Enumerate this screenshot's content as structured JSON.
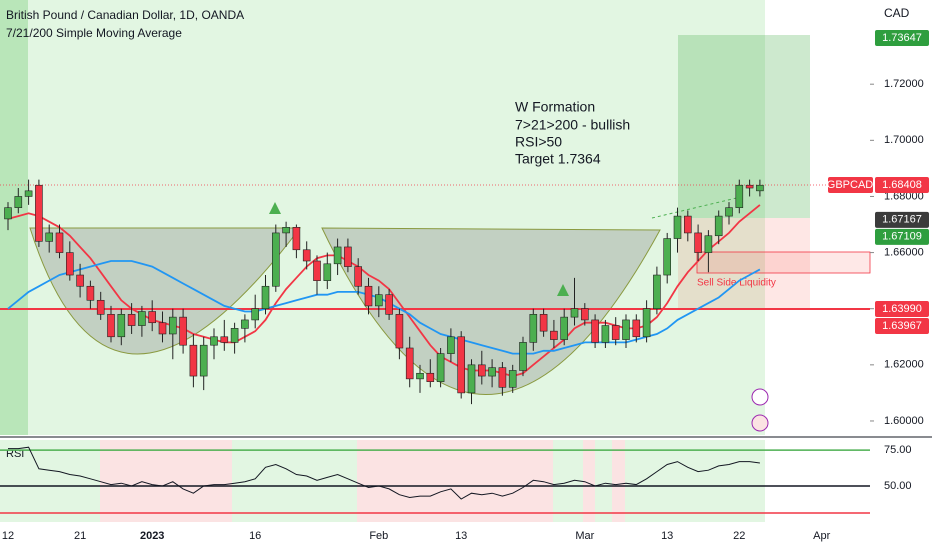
{
  "chart_data": {
    "type": "candlestick",
    "title": "British Pound / Canadian Dollar, 1D, OANDA",
    "subtitle": "7/21/200 Simple Moving Average",
    "currency": "CAD",
    "symbol": "GBPCAD",
    "categories": [
      "12",
      null,
      null,
      null,
      null,
      null,
      null,
      "21",
      null,
      null,
      null,
      null,
      null,
      null,
      "2023",
      null,
      null,
      null,
      null,
      null,
      null,
      null,
      null,
      null,
      "16",
      null,
      null,
      null,
      null,
      null,
      null,
      null,
      null,
      null,
      null,
      null,
      "Feb",
      null,
      null,
      null,
      null,
      null,
      null,
      null,
      "13",
      null,
      null,
      null,
      null,
      null,
      null,
      null,
      null,
      null,
      null,
      null,
      "Mar",
      null,
      null,
      null,
      null,
      null,
      null,
      null,
      "13",
      null,
      null,
      null,
      null,
      null,
      null,
      "22",
      null,
      null,
      null,
      null,
      null,
      null,
      null,
      "Apr"
    ],
    "candles": [
      [
        1.672,
        1.678,
        1.668,
        1.676
      ],
      [
        1.676,
        1.683,
        1.674,
        1.68
      ],
      [
        1.68,
        1.686,
        1.677,
        1.682
      ],
      [
        1.684,
        1.686,
        1.662,
        1.664
      ],
      [
        1.664,
        1.67,
        1.66,
        1.667
      ],
      [
        1.667,
        1.67,
        1.658,
        1.66
      ],
      [
        1.66,
        1.664,
        1.65,
        1.652
      ],
      [
        1.652,
        1.656,
        1.644,
        1.648
      ],
      [
        1.648,
        1.65,
        1.64,
        1.643
      ],
      [
        1.643,
        1.646,
        1.636,
        1.638
      ],
      [
        1.638,
        1.641,
        1.628,
        1.63
      ],
      [
        1.63,
        1.64,
        1.627,
        1.638
      ],
      [
        1.638,
        1.642,
        1.631,
        1.634
      ],
      [
        1.634,
        1.641,
        1.63,
        1.639
      ],
      [
        1.639,
        1.643,
        1.632,
        1.635
      ],
      [
        1.635,
        1.639,
        1.628,
        1.631
      ],
      [
        1.631,
        1.64,
        1.622,
        1.637
      ],
      [
        1.637,
        1.64,
        1.624,
        1.627
      ],
      [
        1.627,
        1.631,
        1.612,
        1.616
      ],
      [
        1.616,
        1.63,
        1.611,
        1.627
      ],
      [
        1.627,
        1.633,
        1.622,
        1.63
      ],
      [
        1.63,
        1.636,
        1.625,
        1.628
      ],
      [
        1.628,
        1.635,
        1.624,
        1.633
      ],
      [
        1.633,
        1.638,
        1.628,
        1.636
      ],
      [
        1.636,
        1.645,
        1.633,
        1.64
      ],
      [
        1.64,
        1.652,
        1.638,
        1.648
      ],
      [
        1.648,
        1.67,
        1.646,
        1.667
      ],
      [
        1.667,
        1.671,
        1.662,
        1.669
      ],
      [
        1.669,
        1.67,
        1.658,
        1.661
      ],
      [
        1.661,
        1.664,
        1.654,
        1.657
      ],
      [
        1.657,
        1.659,
        1.645,
        1.65
      ],
      [
        1.65,
        1.66,
        1.647,
        1.656
      ],
      [
        1.656,
        1.665,
        1.652,
        1.662
      ],
      [
        1.662,
        1.665,
        1.653,
        1.655
      ],
      [
        1.655,
        1.658,
        1.645,
        1.648
      ],
      [
        1.648,
        1.651,
        1.638,
        1.641
      ],
      [
        1.641,
        1.648,
        1.637,
        1.645
      ],
      [
        1.645,
        1.647,
        1.636,
        1.638
      ],
      [
        1.638,
        1.64,
        1.622,
        1.626
      ],
      [
        1.626,
        1.63,
        1.612,
        1.615
      ],
      [
        1.615,
        1.62,
        1.61,
        1.617
      ],
      [
        1.617,
        1.622,
        1.612,
        1.614
      ],
      [
        1.614,
        1.626,
        1.612,
        1.624
      ],
      [
        1.624,
        1.633,
        1.621,
        1.63
      ],
      [
        1.63,
        1.632,
        1.608,
        1.61
      ],
      [
        1.61,
        1.622,
        1.606,
        1.62
      ],
      [
        1.62,
        1.625,
        1.613,
        1.616
      ],
      [
        1.616,
        1.622,
        1.612,
        1.619
      ],
      [
        1.619,
        1.621,
        1.609,
        1.612
      ],
      [
        1.612,
        1.62,
        1.61,
        1.618
      ],
      [
        1.618,
        1.63,
        1.616,
        1.628
      ],
      [
        1.628,
        1.64,
        1.625,
        1.638
      ],
      [
        1.638,
        1.64,
        1.63,
        1.632
      ],
      [
        1.632,
        1.636,
        1.626,
        1.629
      ],
      [
        1.629,
        1.64,
        1.627,
        1.637
      ],
      [
        1.637,
        1.651,
        1.634,
        1.64
      ],
      [
        1.64,
        1.642,
        1.634,
        1.636
      ],
      [
        1.636,
        1.638,
        1.626,
        1.628
      ],
      [
        1.628,
        1.636,
        1.626,
        1.634
      ],
      [
        1.634,
        1.637,
        1.627,
        1.629
      ],
      [
        1.629,
        1.638,
        1.626,
        1.636
      ],
      [
        1.636,
        1.638,
        1.628,
        1.63
      ],
      [
        1.63,
        1.643,
        1.628,
        1.64
      ],
      [
        1.64,
        1.655,
        1.638,
        1.652
      ],
      [
        1.652,
        1.667,
        1.649,
        1.665
      ],
      [
        1.665,
        1.676,
        1.66,
        1.673
      ],
      [
        1.673,
        1.675,
        1.664,
        1.667
      ],
      [
        1.667,
        1.67,
        1.657,
        1.66
      ],
      [
        1.66,
        1.668,
        1.653,
        1.666
      ],
      [
        1.666,
        1.675,
        1.663,
        1.673
      ],
      [
        1.673,
        1.678,
        1.67,
        1.676
      ],
      [
        1.676,
        1.686,
        1.674,
        1.684
      ],
      [
        1.684,
        1.686,
        1.68,
        1.683
      ],
      [
        1.682,
        1.686,
        1.68,
        1.684
      ],
      null,
      null,
      null,
      null,
      null,
      null
    ],
    "up_color": "#4caf50",
    "down_color": "#f23645",
    "moving_averages": [
      {
        "color": "#f23645",
        "values": [
          1.672,
          1.673,
          1.674,
          1.673,
          1.671,
          1.669,
          1.666,
          1.662,
          1.658,
          1.653,
          1.648,
          1.643,
          1.64,
          1.638,
          1.636,
          1.635,
          1.634,
          1.633,
          1.631,
          1.63,
          1.629,
          1.628,
          1.628,
          1.63,
          1.632,
          1.636,
          1.642,
          1.647,
          1.651,
          1.655,
          1.658,
          1.659,
          1.659,
          1.657,
          1.655,
          1.652,
          1.65,
          1.647,
          1.642,
          1.637,
          1.632,
          1.627,
          1.623,
          1.621,
          1.619,
          1.618,
          1.618,
          1.618,
          1.617,
          1.616,
          1.617,
          1.62,
          1.623,
          1.626,
          1.629,
          1.633,
          1.635,
          1.635,
          1.635,
          1.634,
          1.633,
          1.633,
          1.634,
          1.637,
          1.642,
          1.648,
          1.653,
          1.657,
          1.661,
          1.664,
          1.667,
          1.671,
          1.674,
          1.677,
          null,
          null,
          null,
          null,
          null,
          null
        ]
      },
      {
        "color": "#2196f3",
        "values": [
          1.64,
          1.643,
          1.646,
          1.648,
          1.65,
          1.652,
          1.653,
          1.654,
          1.655,
          1.656,
          1.657,
          1.657,
          1.657,
          1.656,
          1.655,
          1.653,
          1.651,
          1.649,
          1.647,
          1.645,
          1.643,
          1.641,
          1.64,
          1.639,
          1.639,
          1.64,
          1.641,
          1.642,
          1.643,
          1.644,
          1.645,
          1.645,
          1.646,
          1.646,
          1.646,
          1.645,
          1.644,
          1.642,
          1.64,
          1.638,
          1.635,
          1.633,
          1.631,
          1.63,
          1.629,
          1.628,
          1.627,
          1.626,
          1.625,
          1.624,
          1.624,
          1.624,
          1.625,
          1.625,
          1.626,
          1.627,
          1.628,
          1.628,
          1.628,
          1.628,
          1.628,
          1.629,
          1.63,
          1.631,
          1.633,
          1.636,
          1.638,
          1.64,
          1.642,
          1.644,
          1.647,
          1.65,
          1.652,
          1.654,
          null,
          null,
          null,
          null,
          null,
          null
        ]
      }
    ],
    "ylim": [
      1.595,
      1.75
    ],
    "yticks": [
      {
        "value": 1.6,
        "label": "1.60000"
      },
      {
        "value": 1.62,
        "label": "1.62000"
      },
      {
        "value": 1.64,
        "label": "1.64000"
      },
      {
        "value": 1.66,
        "label": "1.66000"
      },
      {
        "value": 1.68,
        "label": "1.68000"
      },
      {
        "value": 1.7,
        "label": "1.70000"
      },
      {
        "value": 1.72,
        "label": "1.72000"
      }
    ],
    "price_labels": [
      {
        "value": 1.73647,
        "label": "1.73647",
        "color": "#2e9e3e"
      },
      {
        "value": 1.68408,
        "label": "1.68408",
        "color": "#f23645"
      },
      {
        "value": 1.67167,
        "label": "1.67167",
        "color": "#3b3b3b"
      },
      {
        "value": 1.67109,
        "label": "1.67109",
        "color": "#2e9e3e"
      },
      {
        "value": 1.6399,
        "label": "1.63990",
        "color": "#f23645"
      },
      {
        "value": 1.63967,
        "label": "1.63967",
        "color": "#f23645"
      }
    ],
    "annotation": [
      "W Formation",
      "7>21>200 - bullish",
      "RSI>50",
      "Target 1.7364"
    ],
    "liquidity_label": "Sell Side Liquidity",
    "rsi": {
      "label": "RSI",
      "color": "#131722",
      "values": [
        76,
        76,
        77,
        62,
        61,
        60,
        58,
        57,
        55,
        53,
        51,
        52,
        50,
        53,
        51,
        50,
        53,
        48,
        45,
        50,
        51,
        51,
        52,
        53,
        55,
        63,
        65,
        62,
        58,
        57,
        54,
        56,
        58,
        55,
        52,
        49,
        50,
        48,
        44,
        42,
        43,
        43,
        46,
        48,
        41,
        45,
        44,
        45,
        43,
        45,
        49,
        54,
        53,
        51,
        52,
        54,
        53,
        50,
        52,
        51,
        52,
        51,
        55,
        60,
        65,
        67,
        63,
        60,
        61,
        64,
        65,
        67,
        67,
        66,
        null,
        null,
        null,
        null,
        null,
        null
      ],
      "ylim": [
        25,
        82
      ],
      "yticks": [
        {
          "value": 75,
          "label": "75.00"
        },
        {
          "value": 50,
          "label": "50.00"
        }
      ]
    }
  }
}
